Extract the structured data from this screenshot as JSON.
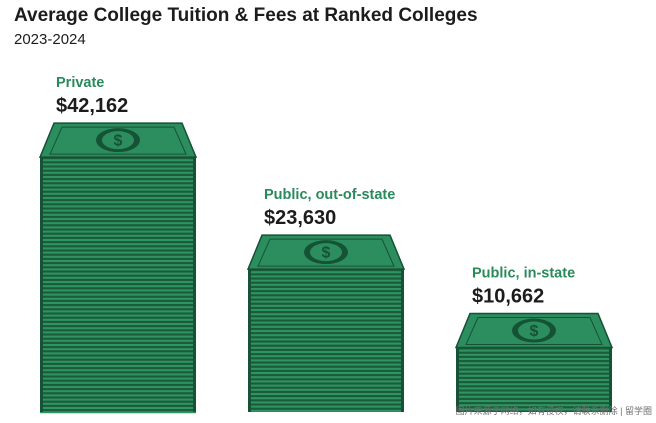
{
  "colors": {
    "brand": "#2a8a5c",
    "bill_top": "#2c8e5e",
    "bill_dark": "#1b5a3a",
    "bill_mid": "#2e9462",
    "edge": "#165236",
    "text": "#1c1c1c"
  },
  "chart_data": {
    "type": "bar",
    "style": "stacks of dollar bills",
    "title": "Average College Tuition & Fees at Ranked Colleges",
    "subtitle": "2023-2024",
    "categories": [
      "Private",
      "Public, out-of-state",
      "Public, in-state"
    ],
    "values": [
      42162,
      23630,
      10662
    ],
    "value_labels": [
      "$42,162",
      "$23,630",
      "$10,662"
    ],
    "unit": "USD",
    "ylim": [
      0,
      45000
    ],
    "grid": false,
    "legend": "none",
    "xlabel": "",
    "ylabel": ""
  },
  "watermark": "图片来源于网络，如有侵权，请联系删除 | 留学圈"
}
